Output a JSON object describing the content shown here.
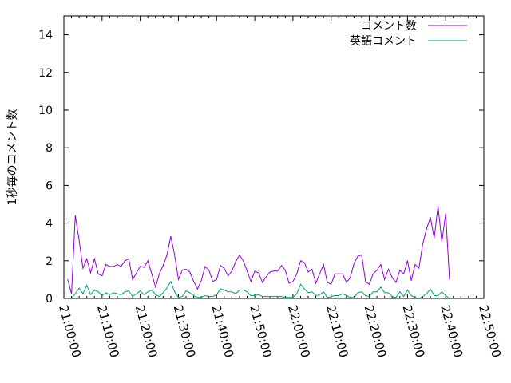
{
  "chart_data": {
    "type": "line",
    "title": "",
    "xlabel": "",
    "ylabel": "1秒毎のコメント数",
    "ylim": [
      0,
      15
    ],
    "xlim": [
      "21:00:00",
      "22:50:00"
    ],
    "yticks": [
      "0",
      "2",
      "4",
      "6",
      "8",
      "10",
      "12",
      "14"
    ],
    "xticks": [
      "21:00:00",
      "21:10:00",
      "21:20:00",
      "21:30:00",
      "21:40:00",
      "21:50:00",
      "22:00:00",
      "22:10:00",
      "22:20:00",
      "22:30:00",
      "22:40:00",
      "22:50:00"
    ],
    "grid": false,
    "legend_position": "top-right",
    "x": [
      "21:01",
      "21:02",
      "21:03",
      "21:04",
      "21:05",
      "21:06",
      "21:07",
      "21:08",
      "21:09",
      "21:10",
      "21:11",
      "21:12",
      "21:13",
      "21:14",
      "21:15",
      "21:16",
      "21:17",
      "21:18",
      "21:19",
      "21:20",
      "21:21",
      "21:22",
      "21:23",
      "21:24",
      "21:25",
      "21:26",
      "21:27",
      "21:28",
      "21:29",
      "21:30",
      "21:31",
      "21:32",
      "21:33",
      "21:34",
      "21:35",
      "21:36",
      "21:37",
      "21:38",
      "21:39",
      "21:40",
      "21:41",
      "21:42",
      "21:43",
      "21:44",
      "21:45",
      "21:46",
      "21:47",
      "21:48",
      "21:49",
      "21:50",
      "21:51",
      "21:52",
      "21:53",
      "21:54",
      "21:55",
      "21:56",
      "21:57",
      "21:58",
      "21:59",
      "22:00",
      "22:01",
      "22:02",
      "22:03",
      "22:04",
      "22:05",
      "22:06",
      "22:07",
      "22:08",
      "22:09",
      "22:10",
      "22:11",
      "22:12",
      "22:13",
      "22:14",
      "22:15",
      "22:16",
      "22:17",
      "22:18",
      "22:19",
      "22:20",
      "22:21",
      "22:22",
      "22:23",
      "22:24",
      "22:25",
      "22:26",
      "22:27",
      "22:28",
      "22:29",
      "22:30",
      "22:31",
      "22:32",
      "22:33",
      "22:34",
      "22:35",
      "22:36",
      "22:37",
      "22:38",
      "22:39",
      "22:40",
      "22:41"
    ],
    "series": [
      {
        "name": "コメント数",
        "color": "#9400d3",
        "values": [
          1.0,
          0.25,
          4.4,
          3.1,
          1.6,
          2.1,
          1.35,
          2.1,
          1.3,
          1.2,
          1.8,
          1.7,
          1.7,
          1.8,
          1.7,
          2.0,
          2.1,
          1.0,
          1.35,
          1.7,
          1.65,
          2.0,
          1.3,
          0.6,
          1.3,
          1.75,
          2.3,
          3.3,
          2.3,
          1.0,
          1.5,
          1.55,
          1.4,
          0.9,
          0.5,
          0.95,
          1.7,
          1.5,
          0.9,
          1.0,
          1.75,
          1.6,
          1.2,
          1.45,
          1.95,
          2.3,
          2.0,
          1.45,
          0.9,
          1.45,
          1.35,
          0.85,
          1.15,
          1.4,
          1.45,
          1.45,
          1.75,
          1.5,
          0.8,
          0.9,
          1.3,
          2.0,
          1.9,
          1.4,
          1.55,
          0.8,
          1.3,
          1.8,
          0.85,
          0.75,
          1.3,
          1.3,
          1.3,
          0.85,
          1.1,
          1.85,
          2.25,
          2.3,
          0.9,
          0.75,
          1.3,
          1.5,
          1.8,
          1.0,
          1.55,
          1.1,
          0.85,
          1.5,
          1.3,
          2.0,
          0.95,
          1.8,
          1.6,
          2.9,
          3.7,
          4.3,
          3.2,
          4.9,
          3.0,
          4.5,
          1.0
        ]
      },
      {
        "name": "英語コメント",
        "color": "#009e73",
        "values": [
          null,
          0,
          0.25,
          0.55,
          0.25,
          0.7,
          0.2,
          0.45,
          0.35,
          0.15,
          0.3,
          0.2,
          0.3,
          0.25,
          0.2,
          0.35,
          0.4,
          0.1,
          0.25,
          0.4,
          0.2,
          0.35,
          0.45,
          0.2,
          0.1,
          0.3,
          0.55,
          0.9,
          0.35,
          0.05,
          0.1,
          0.4,
          0.3,
          0.15,
          0.05,
          0.05,
          0.15,
          0.1,
          0.1,
          0.2,
          0.5,
          0.45,
          0.35,
          0.35,
          0.25,
          0.45,
          0.45,
          0.35,
          0.15,
          0.15,
          0.2,
          0.1,
          0.1,
          0.1,
          0.1,
          0.1,
          0.1,
          0.05,
          0.05,
          0.05,
          0.25,
          0.75,
          0.5,
          0.3,
          0.35,
          0.15,
          0.2,
          0.35,
          0.05,
          0.1,
          0.15,
          0.15,
          0.25,
          0.15,
          0.05,
          0.05,
          0.3,
          0.35,
          0.15,
          0.1,
          0.35,
          0.35,
          0.6,
          0.3,
          0.3,
          0.1,
          0.05,
          0.35,
          0.1,
          0.45,
          0.15,
          0.05,
          0,
          0.1,
          0.25,
          0.5,
          0.15,
          0.15,
          0.35,
          0.15,
          0
        ]
      }
    ]
  }
}
